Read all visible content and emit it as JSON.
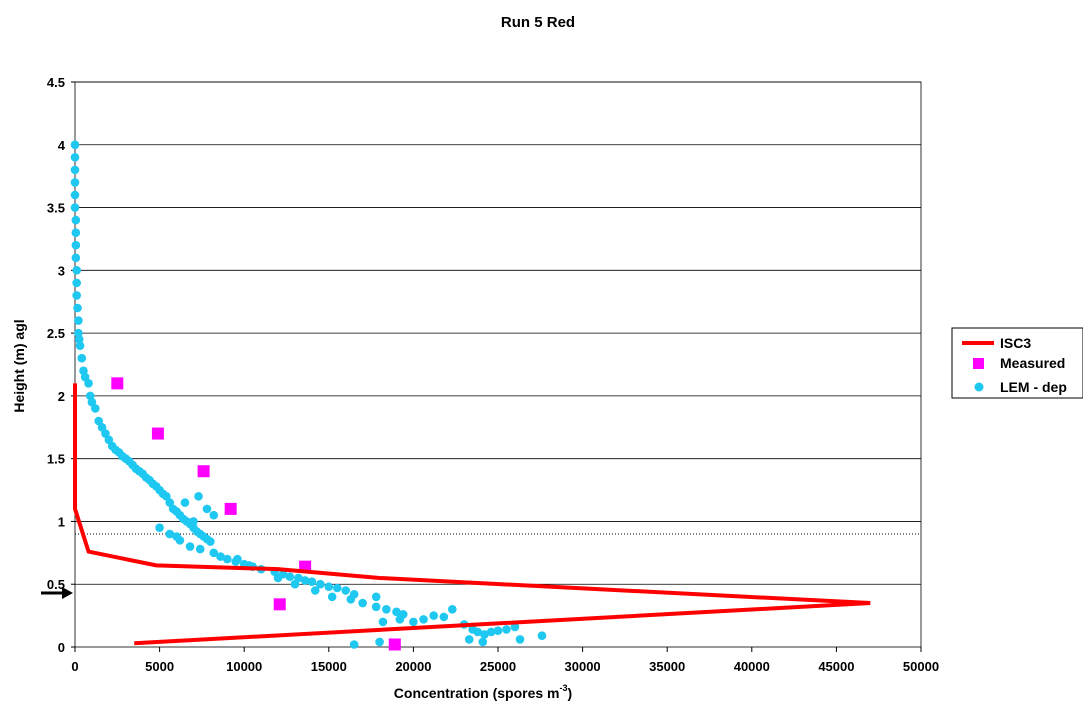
{
  "chart_data": {
    "type": "scatter",
    "title": "Run 5 Red",
    "xlabel": "Concentration (spores m",
    "xlabel_superscript": "-3",
    "xlabel_close": ")",
    "ylabel": "Height (m) agl",
    "xlim": [
      0,
      50000
    ],
    "ylim": [
      0,
      4.5
    ],
    "x_ticks": [
      0,
      5000,
      10000,
      15000,
      20000,
      25000,
      30000,
      35000,
      40000,
      45000,
      50000
    ],
    "y_ticks": [
      0,
      0.5,
      1,
      1.5,
      2,
      2.5,
      3,
      3.5,
      4,
      4.5
    ],
    "y_tick_labels": [
      "0",
      "0.5",
      "1",
      "1.5",
      "2",
      "2.5",
      "3",
      "3.5",
      "4",
      "4.5"
    ],
    "grid": "horizontal major gridlines",
    "reference_line_y": 0.9,
    "arrow_marker_y": 0.43,
    "legend_position": "right",
    "colors": {
      "isc3": "#ff0000",
      "measured": "#ff00ff",
      "lem": "#1ec8f0",
      "grid": "#000000",
      "background": "#ffffff"
    },
    "series": [
      {
        "name": "ISC3",
        "kind": "line",
        "x": [
          0,
          0,
          0,
          800,
          4800,
          12000,
          18000,
          47000,
          3500
        ],
        "y": [
          2.1,
          1.5,
          1.1,
          0.76,
          0.65,
          0.62,
          0.55,
          0.35,
          0.03
        ]
      },
      {
        "name": "Measured",
        "kind": "marker-square",
        "x": [
          2500,
          4900,
          7600,
          9200,
          13600,
          12100,
          18900
        ],
        "y": [
          2.1,
          1.7,
          1.4,
          1.1,
          0.64,
          0.34,
          0.02
        ]
      },
      {
        "name": "LEM - dep",
        "kind": "marker-circle",
        "x": [
          0,
          0,
          0,
          0,
          0,
          0,
          50,
          50,
          50,
          50,
          100,
          100,
          100,
          150,
          200,
          200,
          250,
          300,
          400,
          500,
          600,
          800,
          900,
          1000,
          1200,
          1400,
          1600,
          1800,
          2000,
          2200,
          2400,
          2600,
          2800,
          3000,
          3200,
          3400,
          3600,
          3800,
          4000,
          4200,
          4400,
          4600,
          4800,
          5000,
          5200,
          5400,
          5600,
          5800,
          6000,
          6200,
          6400,
          6600,
          6800,
          7000,
          7200,
          7400,
          7600,
          7800,
          8000,
          5000,
          5600,
          6200,
          6800,
          7400,
          8200,
          8600,
          9000,
          9500,
          10000,
          10500,
          11000,
          11800,
          12300,
          12700,
          13200,
          13600,
          14000,
          14500,
          15000,
          15500,
          16000,
          16500,
          12000,
          13000,
          14200,
          15200,
          16300,
          17000,
          17800,
          18400,
          19000,
          19400,
          18200,
          19200,
          17800,
          20000,
          20600,
          21200,
          21800,
          22300,
          23000,
          23500,
          23800,
          24200,
          24600,
          25000,
          25500,
          26000,
          26300,
          27600,
          16500,
          18000,
          19000,
          23300,
          24100,
          7000,
          7800,
          5600,
          6500,
          8200,
          7300,
          6000,
          9600,
          10300
        ],
        "y": [
          4.0,
          3.9,
          3.8,
          3.7,
          3.6,
          3.5,
          3.4,
          3.3,
          3.2,
          3.1,
          3.0,
          2.9,
          2.8,
          2.7,
          2.6,
          2.5,
          2.45,
          2.4,
          2.3,
          2.2,
          2.15,
          2.1,
          2.0,
          1.95,
          1.9,
          1.8,
          1.75,
          1.7,
          1.65,
          1.6,
          1.57,
          1.55,
          1.52,
          1.5,
          1.48,
          1.45,
          1.42,
          1.4,
          1.38,
          1.35,
          1.33,
          1.3,
          1.28,
          1.25,
          1.22,
          1.2,
          1.15,
          1.1,
          1.08,
          1.05,
          1.02,
          1.0,
          0.98,
          0.95,
          0.92,
          0.9,
          0.88,
          0.86,
          0.84,
          0.95,
          0.9,
          0.85,
          0.8,
          0.78,
          0.75,
          0.72,
          0.7,
          0.68,
          0.66,
          0.64,
          0.62,
          0.6,
          0.58,
          0.56,
          0.55,
          0.53,
          0.52,
          0.5,
          0.48,
          0.47,
          0.45,
          0.42,
          0.55,
          0.5,
          0.45,
          0.4,
          0.38,
          0.35,
          0.32,
          0.3,
          0.28,
          0.26,
          0.2,
          0.22,
          0.4,
          0.2,
          0.22,
          0.25,
          0.24,
          0.3,
          0.18,
          0.14,
          0.12,
          0.1,
          0.12,
          0.13,
          0.14,
          0.16,
          0.06,
          0.09,
          0.02,
          0.04,
          0.01,
          0.06,
          0.04,
          1.0,
          1.1,
          0.9,
          1.15,
          1.05,
          1.2,
          0.88,
          0.7,
          0.65
        ]
      }
    ]
  }
}
